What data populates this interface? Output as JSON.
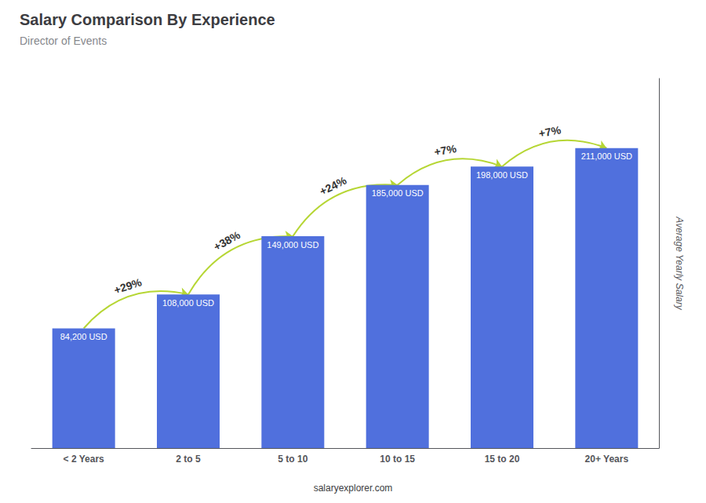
{
  "chart_data": {
    "type": "bar",
    "title": "Salary Comparison By Experience",
    "subtitle": "Director of Events",
    "ylabel": "Average Yearly Salary",
    "categories": [
      "< 2 Years",
      "2 to 5",
      "5 to 10",
      "10 to 15",
      "15 to 20",
      "20+ Years"
    ],
    "values": [
      84200,
      108000,
      149000,
      185000,
      198000,
      211000
    ],
    "value_labels": [
      "84,200 USD",
      "108,000 USD",
      "149,000 USD",
      "185,000 USD",
      "198,000 USD",
      "211,000 USD"
    ],
    "data_labels": true,
    "ylim": [
      0,
      260000
    ],
    "tick_labels": "x",
    "grid": false,
    "annotations": [
      {
        "text": "+29%",
        "from": "< 2 Years",
        "to": "2 to 5"
      },
      {
        "text": "+38%",
        "from": "2 to 5",
        "to": "5 to 10"
      },
      {
        "text": "+24%",
        "from": "5 to 10",
        "to": "10 to 15"
      },
      {
        "text": "+7%",
        "from": "10 to 15",
        "to": "15 to 20"
      },
      {
        "text": "+7%",
        "from": "15 to 20",
        "to": "20+ Years"
      },
      {
        "text": "salaryexplorer.com"
      }
    ]
  }
}
